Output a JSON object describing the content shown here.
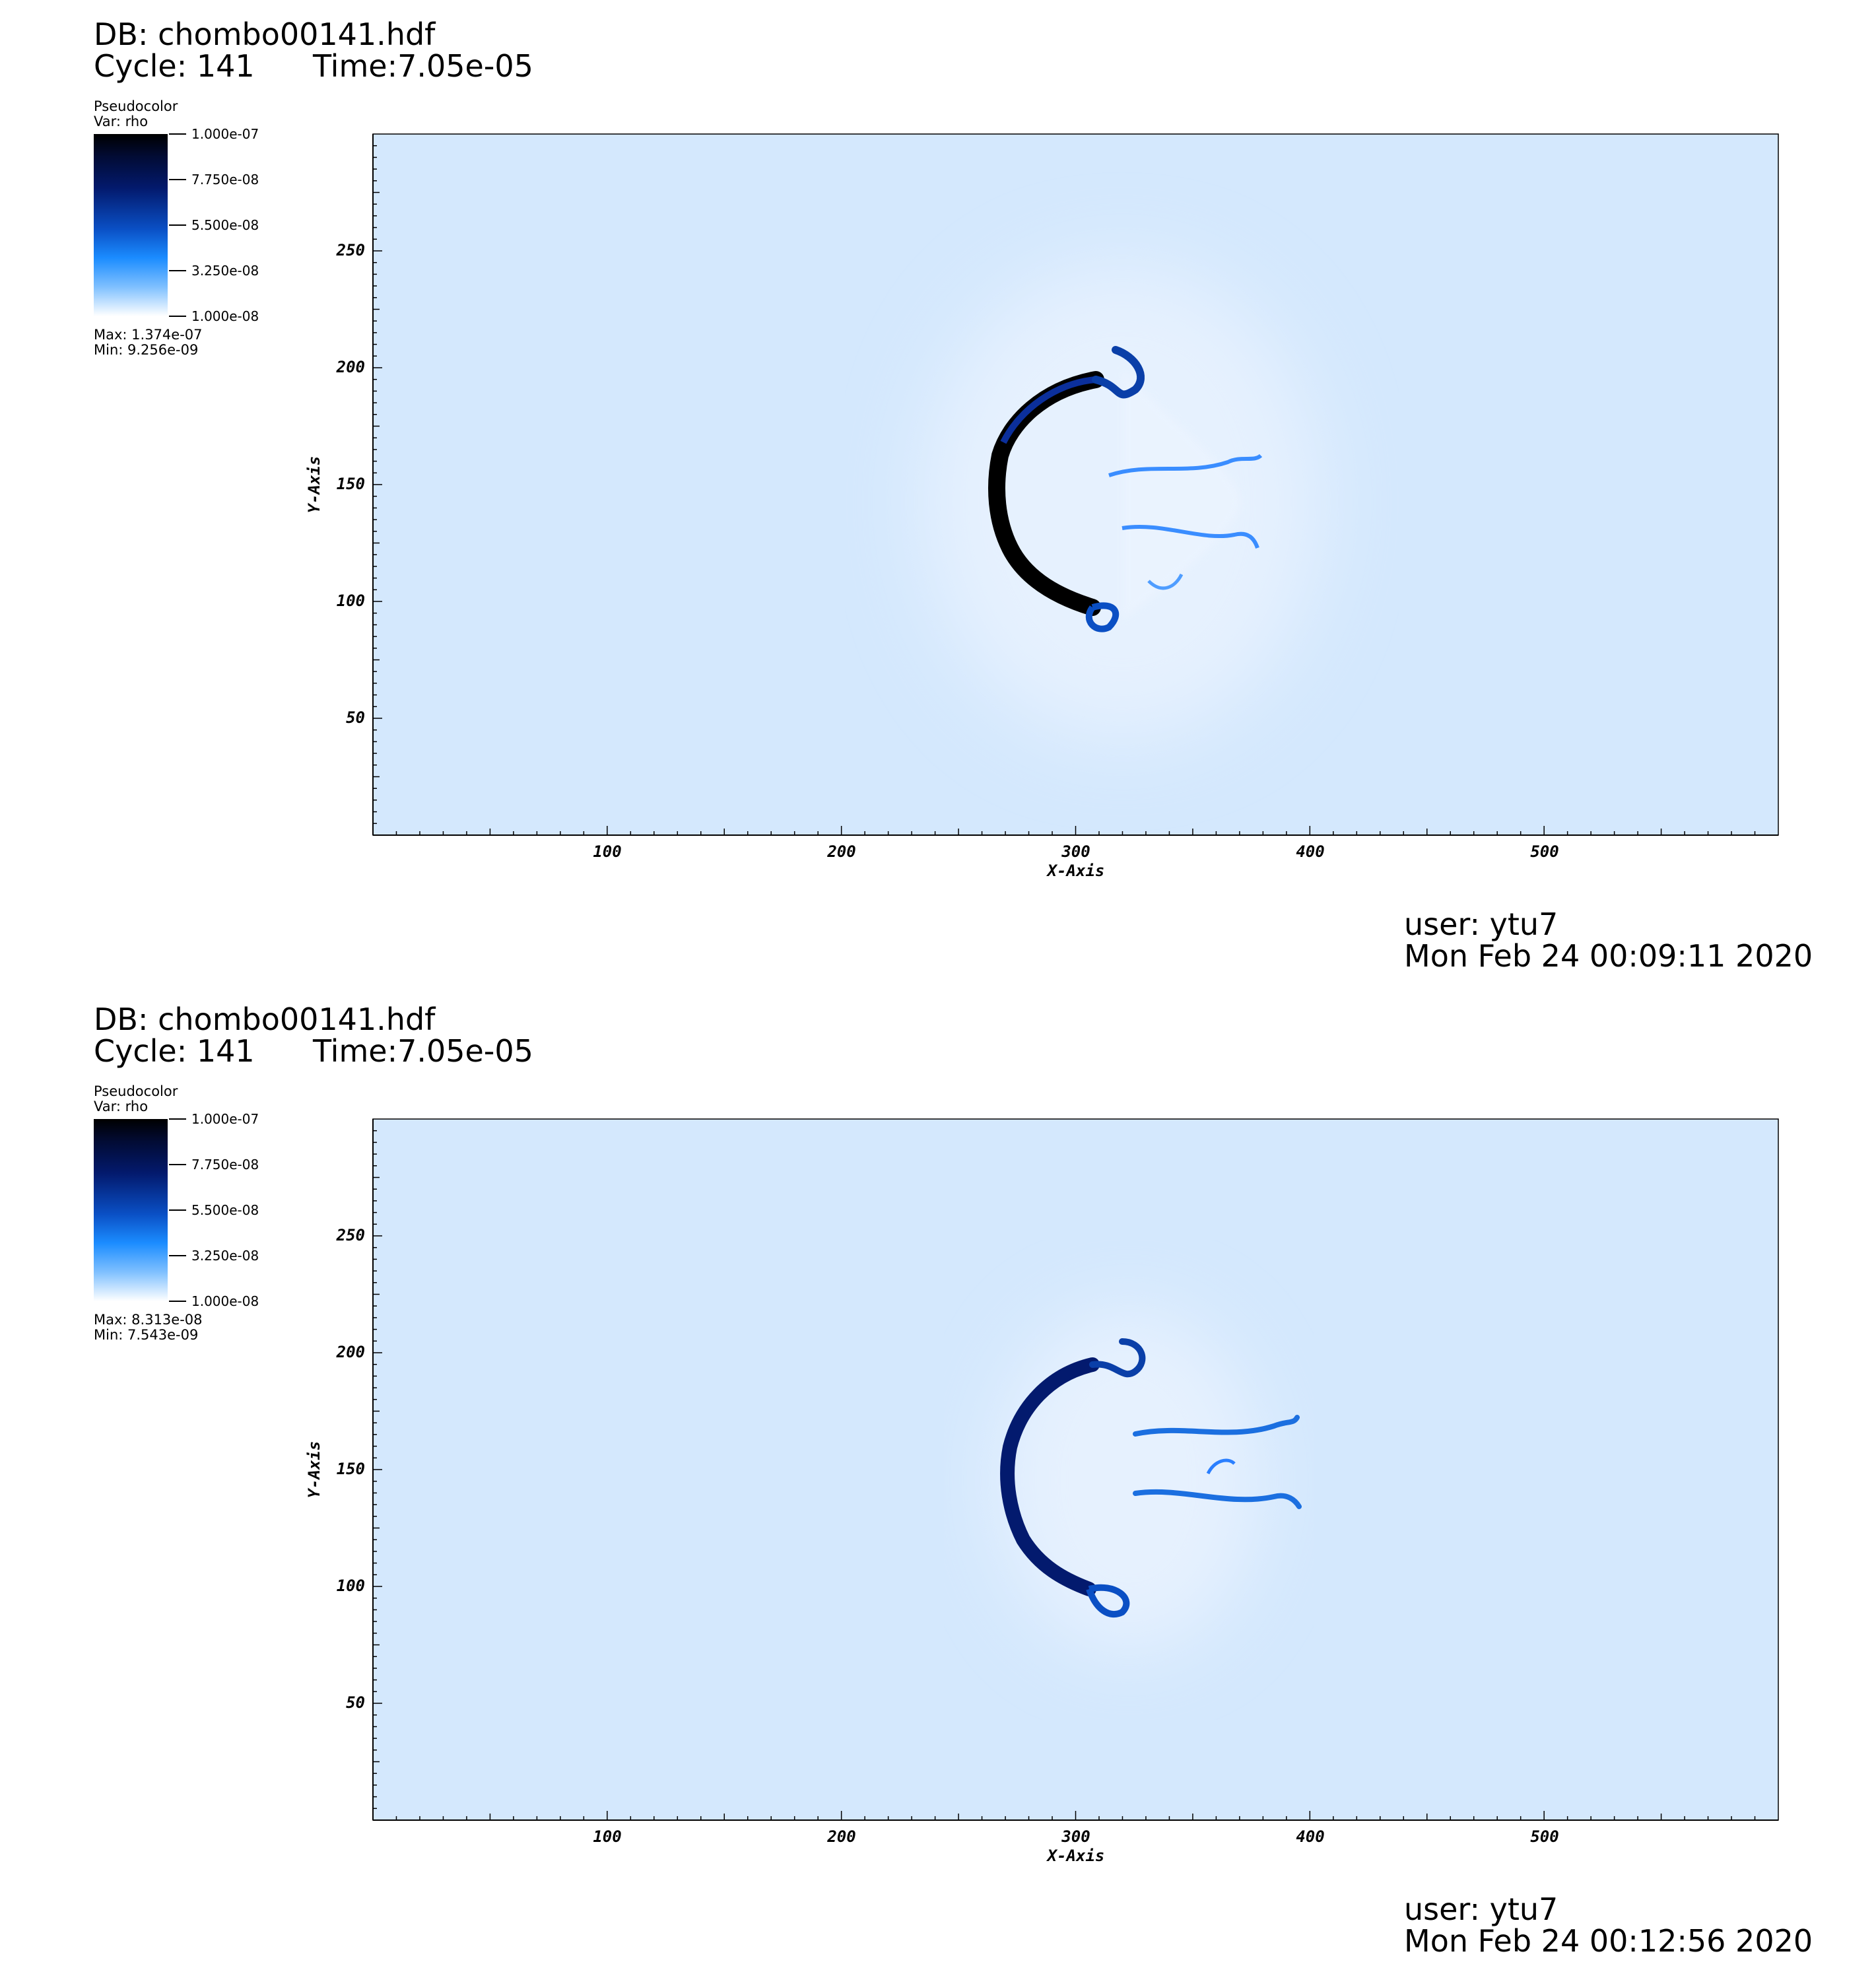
{
  "panels": [
    {
      "db": "DB: chombo00141.hdf",
      "cycle": "Cycle: 141",
      "time": "Time:7.05e-05",
      "legend": {
        "plot_type": "Pseudocolor",
        "var": "Var: rho",
        "ticks": [
          "1.000e-07",
          "7.750e-08",
          "5.500e-08",
          "3.250e-08",
          "1.000e-08"
        ],
        "max": "Max:  1.374e-07",
        "min": "Min:  9.256e-09"
      },
      "user": "user: ytu7",
      "date": "Mon Feb 24 00:09:11 2020"
    },
    {
      "db": "DB: chombo00141.hdf",
      "cycle": "Cycle: 141",
      "time": "Time:7.05e-05",
      "legend": {
        "plot_type": "Pseudocolor",
        "var": "Var: rho",
        "ticks": [
          "1.000e-07",
          "7.750e-08",
          "5.500e-08",
          "3.250e-08",
          "1.000e-08"
        ],
        "max": "Max:  8.313e-08",
        "min": "Min:  7.543e-09"
      },
      "user": "user: ytu7",
      "date": "Mon Feb 24 00:12:56 2020"
    }
  ],
  "chart_data": [
    {
      "type": "heatmap",
      "variable": "rho",
      "xlabel": "X-Axis",
      "ylabel": "Y-Axis",
      "xlim": [
        0,
        600
      ],
      "ylim": [
        0,
        300
      ],
      "x_ticks": [
        100,
        200,
        300,
        400,
        500
      ],
      "y_ticks": [
        50,
        100,
        150,
        200,
        250
      ],
      "colorbar_range": [
        1e-08,
        1e-07
      ],
      "data_max": 1.374e-07,
      "data_min": 9.256e-09,
      "background_color": "#d4e8fd",
      "dense_color": "#000000"
    },
    {
      "type": "heatmap",
      "variable": "rho",
      "xlabel": "X-Axis",
      "ylabel": "Y-Axis",
      "xlim": [
        0,
        600
      ],
      "ylim": [
        0,
        300
      ],
      "x_ticks": [
        100,
        200,
        300,
        400,
        500
      ],
      "y_ticks": [
        50,
        100,
        150,
        200,
        250
      ],
      "colorbar_range": [
        1e-08,
        1e-07
      ],
      "data_max": 8.313e-08,
      "data_min": 7.543e-09,
      "background_color": "#d4e8fd",
      "dense_color": "#031a6e"
    }
  ]
}
